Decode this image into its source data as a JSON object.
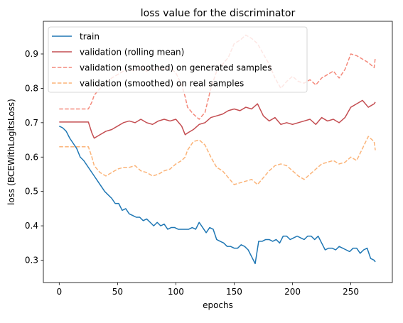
{
  "chart_data": {
    "type": "line",
    "title": "loss value for the discriminator",
    "xlabel": "epochs",
    "ylabel": "loss (BCEWithLogitsLoss)",
    "xlim": [
      -13.6,
      285.6
    ],
    "ylim": [
      0.235,
      0.995
    ],
    "x_ticks": [
      0,
      50,
      100,
      150,
      200,
      250
    ],
    "y_ticks": [
      0.3,
      0.4,
      0.5,
      0.6,
      0.7,
      0.8,
      0.9
    ],
    "grid": false,
    "legend_position": "upper-left",
    "series": [
      {
        "name": "train",
        "color": "#1f77b4",
        "style": "solid",
        "x": [
          0,
          3,
          6,
          9,
          12,
          15,
          18,
          21,
          24,
          27,
          30,
          33,
          36,
          39,
          42,
          45,
          48,
          51,
          54,
          57,
          60,
          63,
          66,
          69,
          72,
          75,
          78,
          81,
          84,
          87,
          90,
          93,
          96,
          99,
          102,
          105,
          108,
          111,
          114,
          117,
          120,
          123,
          126,
          129,
          132,
          135,
          138,
          141,
          144,
          147,
          150,
          153,
          156,
          159,
          162,
          165,
          168,
          171,
          174,
          177,
          180,
          183,
          186,
          189,
          192,
          195,
          198,
          201,
          204,
          207,
          210,
          213,
          216,
          219,
          222,
          225,
          228,
          231,
          234,
          237,
          240,
          243,
          246,
          249,
          252,
          255,
          258,
          261,
          264,
          267,
          270,
          271
        ],
        "y": [
          0.69,
          0.685,
          0.675,
          0.655,
          0.64,
          0.625,
          0.6,
          0.59,
          0.575,
          0.56,
          0.545,
          0.53,
          0.515,
          0.5,
          0.49,
          0.48,
          0.465,
          0.465,
          0.445,
          0.45,
          0.435,
          0.43,
          0.425,
          0.425,
          0.415,
          0.42,
          0.41,
          0.4,
          0.41,
          0.4,
          0.405,
          0.39,
          0.395,
          0.395,
          0.39,
          0.39,
          0.39,
          0.39,
          0.395,
          0.39,
          0.41,
          0.395,
          0.38,
          0.395,
          0.39,
          0.36,
          0.355,
          0.35,
          0.34,
          0.34,
          0.335,
          0.335,
          0.345,
          0.34,
          0.33,
          0.31,
          0.29,
          0.355,
          0.355,
          0.36,
          0.36,
          0.355,
          0.36,
          0.35,
          0.37,
          0.37,
          0.36,
          0.365,
          0.37,
          0.365,
          0.36,
          0.37,
          0.37,
          0.36,
          0.37,
          0.35,
          0.33,
          0.335,
          0.335,
          0.33,
          0.34,
          0.335,
          0.33,
          0.325,
          0.335,
          0.335,
          0.32,
          0.33,
          0.335,
          0.305,
          0.3,
          0.295
        ]
      },
      {
        "name": "validation (rolling mean)",
        "color": "#c44e52",
        "style": "solid",
        "x": [
          0,
          5,
          10,
          15,
          20,
          25,
          28,
          30,
          35,
          40,
          45,
          50,
          55,
          60,
          65,
          70,
          75,
          80,
          85,
          90,
          95,
          100,
          105,
          108,
          110,
          115,
          120,
          125,
          130,
          135,
          140,
          145,
          150,
          155,
          160,
          165,
          170,
          175,
          180,
          185,
          190,
          195,
          200,
          205,
          210,
          215,
          220,
          225,
          230,
          235,
          240,
          245,
          250,
          255,
          260,
          265,
          270,
          271
        ],
        "y": [
          0.702,
          0.702,
          0.702,
          0.702,
          0.702,
          0.702,
          0.67,
          0.655,
          0.665,
          0.675,
          0.68,
          0.69,
          0.7,
          0.705,
          0.7,
          0.71,
          0.7,
          0.695,
          0.705,
          0.71,
          0.705,
          0.71,
          0.69,
          0.665,
          0.67,
          0.68,
          0.695,
          0.7,
          0.715,
          0.72,
          0.725,
          0.735,
          0.74,
          0.735,
          0.745,
          0.74,
          0.755,
          0.72,
          0.705,
          0.715,
          0.695,
          0.7,
          0.695,
          0.7,
          0.705,
          0.71,
          0.695,
          0.715,
          0.705,
          0.71,
          0.7,
          0.715,
          0.745,
          0.755,
          0.765,
          0.745,
          0.755,
          0.76
        ]
      },
      {
        "name": "validation (smoothed) on generated samples",
        "color": "#f4897b",
        "style": "dashed",
        "x": [
          0,
          5,
          10,
          15,
          20,
          25,
          28,
          30,
          35,
          40,
          45,
          50,
          55,
          60,
          65,
          70,
          75,
          80,
          85,
          90,
          95,
          100,
          105,
          108,
          110,
          115,
          120,
          125,
          130,
          135,
          140,
          145,
          150,
          155,
          160,
          165,
          170,
          175,
          180,
          185,
          190,
          195,
          200,
          205,
          210,
          215,
          220,
          225,
          230,
          235,
          240,
          245,
          250,
          255,
          260,
          265,
          270,
          271
        ],
        "y": [
          0.74,
          0.74,
          0.74,
          0.74,
          0.74,
          0.74,
          0.76,
          0.78,
          0.8,
          0.815,
          0.83,
          0.84,
          0.85,
          0.855,
          0.85,
          0.86,
          0.85,
          0.855,
          0.86,
          0.855,
          0.86,
          0.845,
          0.81,
          0.775,
          0.745,
          0.725,
          0.71,
          0.73,
          0.8,
          0.85,
          0.87,
          0.89,
          0.93,
          0.94,
          0.955,
          0.945,
          0.93,
          0.9,
          0.87,
          0.83,
          0.8,
          0.82,
          0.835,
          0.82,
          0.815,
          0.825,
          0.81,
          0.83,
          0.84,
          0.85,
          0.83,
          0.855,
          0.9,
          0.895,
          0.885,
          0.875,
          0.86,
          0.89
        ]
      },
      {
        "name": "validation (smoothed) on real samples",
        "color": "#fbb479",
        "style": "dashed",
        "x": [
          0,
          5,
          10,
          15,
          20,
          25,
          28,
          30,
          35,
          40,
          45,
          50,
          55,
          60,
          65,
          70,
          75,
          80,
          85,
          90,
          95,
          100,
          105,
          108,
          110,
          115,
          120,
          125,
          130,
          135,
          140,
          145,
          150,
          155,
          160,
          165,
          170,
          175,
          180,
          185,
          190,
          195,
          200,
          205,
          210,
          215,
          220,
          225,
          230,
          235,
          240,
          245,
          250,
          255,
          260,
          265,
          270,
          271
        ],
        "y": [
          0.63,
          0.63,
          0.63,
          0.63,
          0.63,
          0.63,
          0.6,
          0.575,
          0.555,
          0.545,
          0.555,
          0.565,
          0.57,
          0.57,
          0.575,
          0.56,
          0.555,
          0.545,
          0.55,
          0.56,
          0.565,
          0.58,
          0.59,
          0.6,
          0.62,
          0.645,
          0.65,
          0.635,
          0.6,
          0.57,
          0.56,
          0.54,
          0.52,
          0.525,
          0.53,
          0.535,
          0.52,
          0.54,
          0.56,
          0.575,
          0.58,
          0.575,
          0.56,
          0.545,
          0.535,
          0.55,
          0.565,
          0.58,
          0.585,
          0.59,
          0.58,
          0.585,
          0.6,
          0.59,
          0.625,
          0.66,
          0.645,
          0.62
        ]
      }
    ]
  }
}
